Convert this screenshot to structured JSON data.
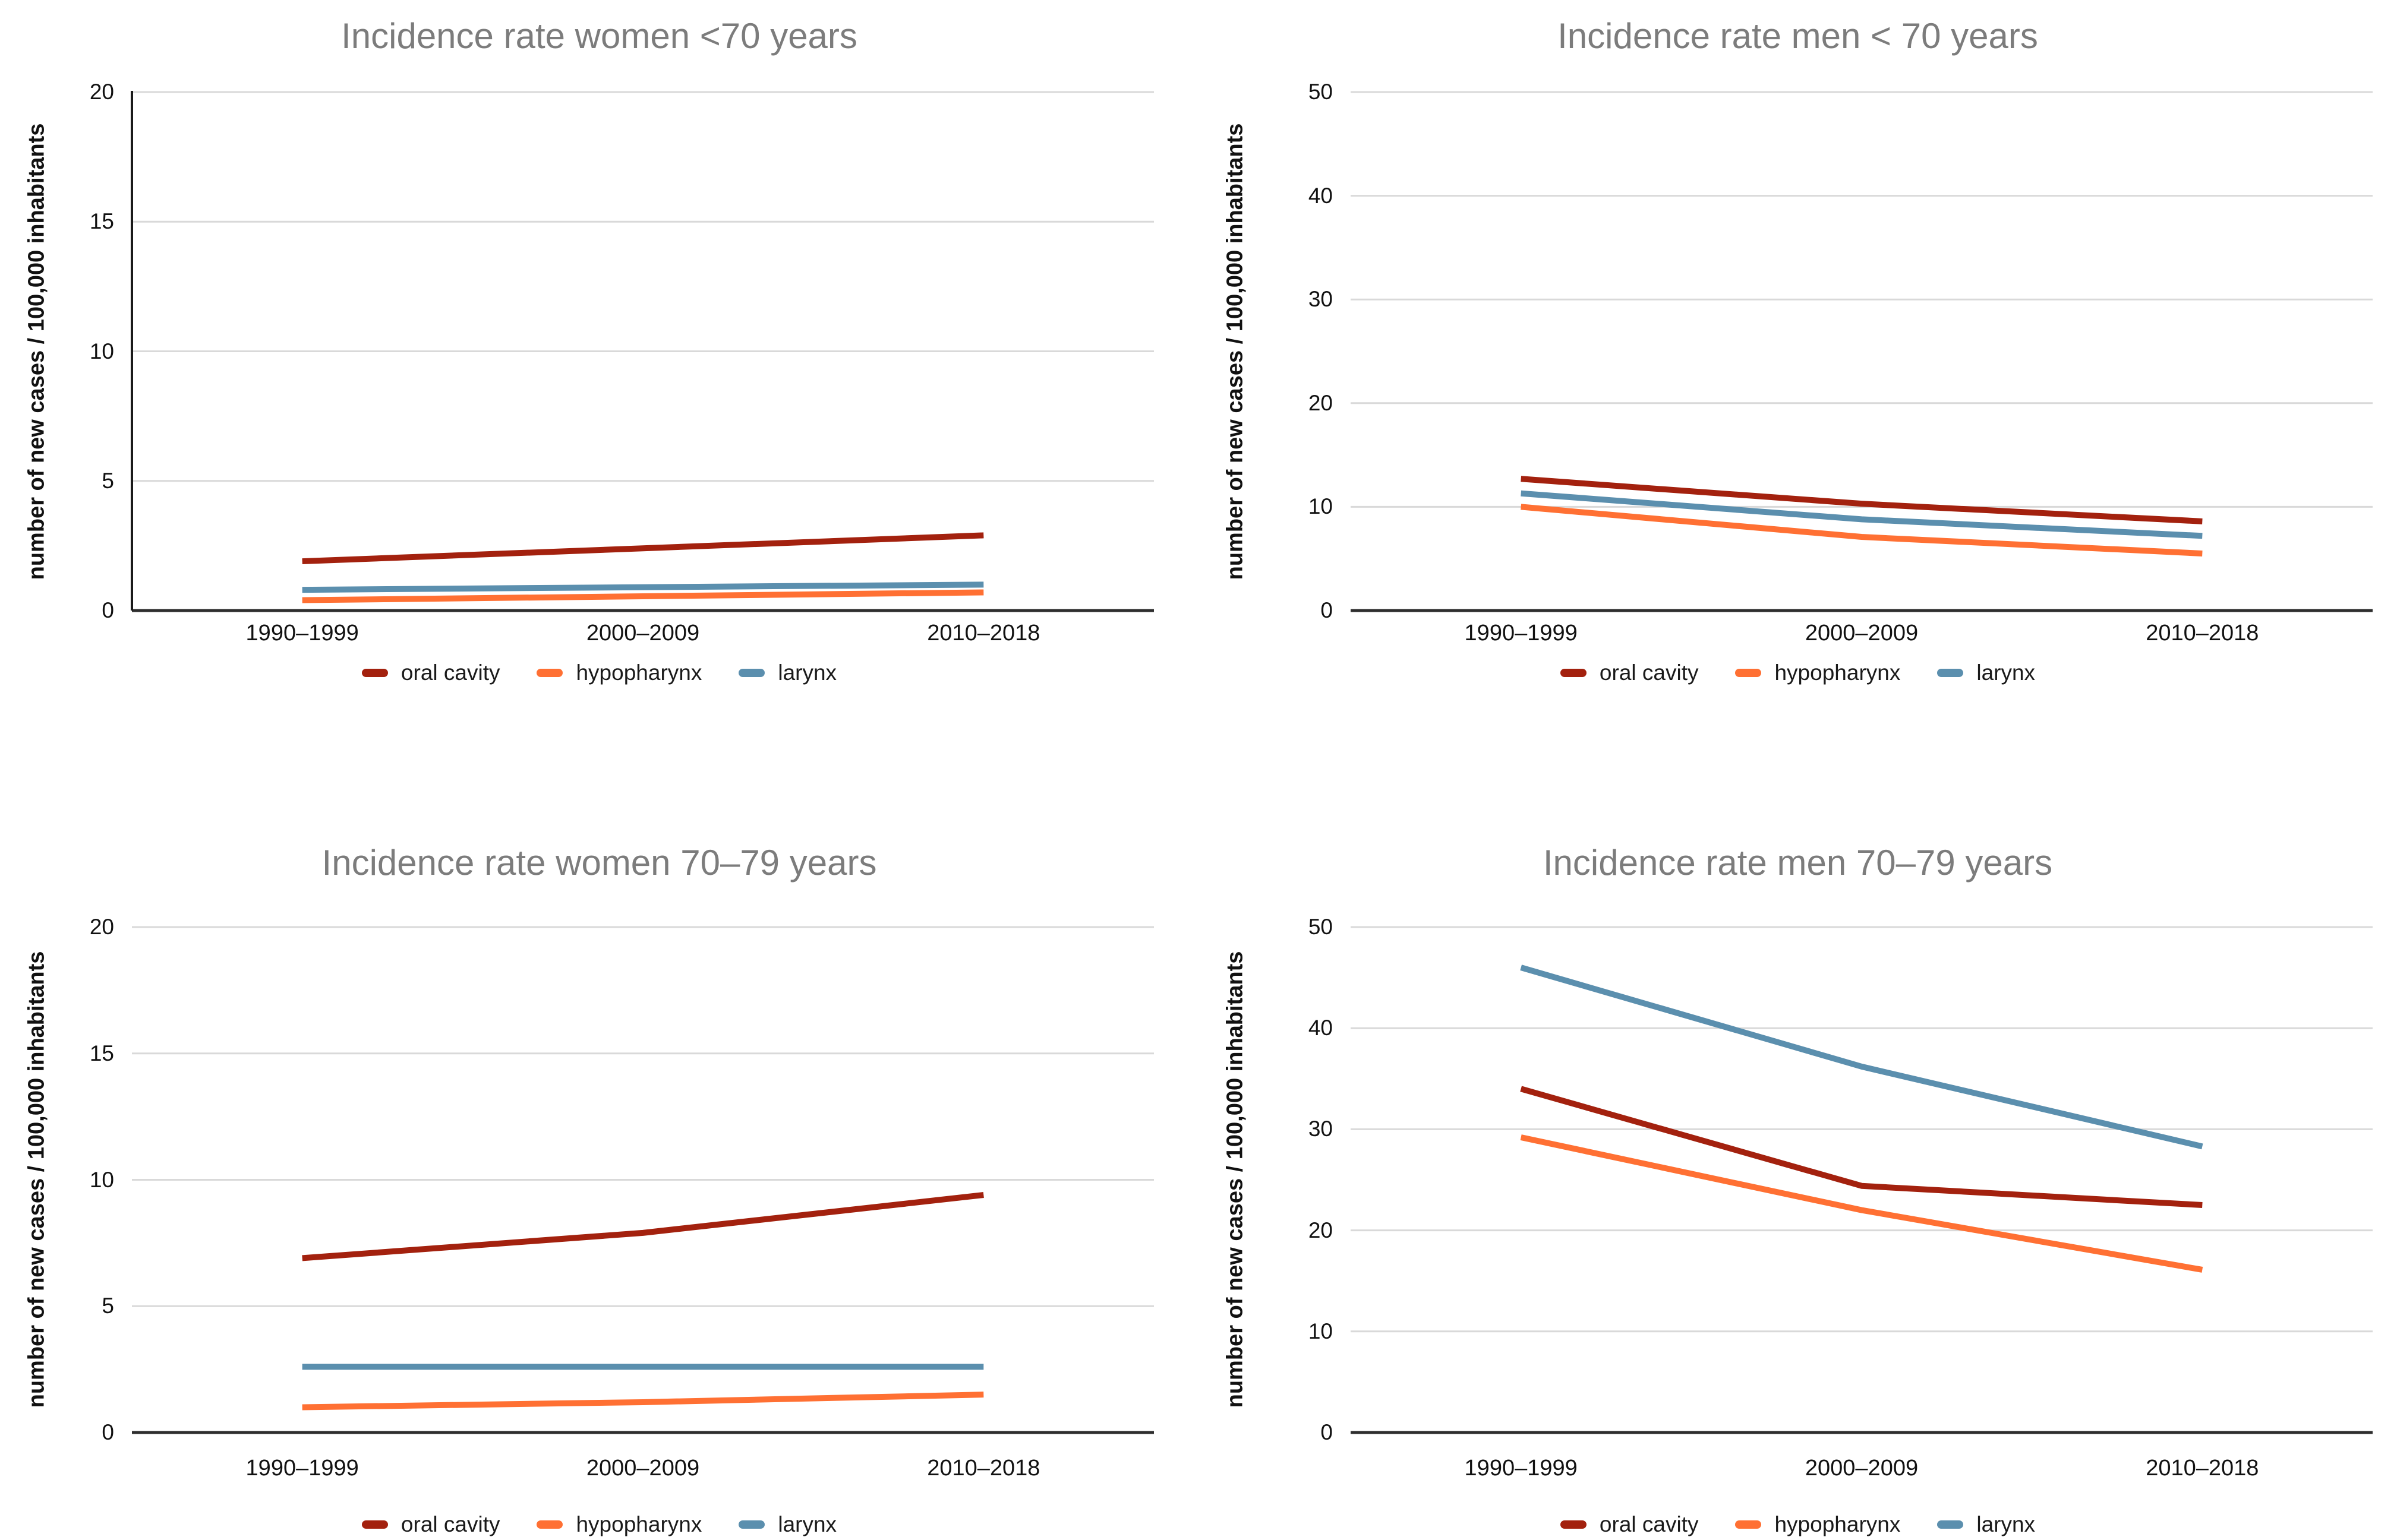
{
  "figure": {
    "ylabel": "number of new cases / 100,000 inhabitants",
    "categories": [
      "1990–1999",
      "2000–2009",
      "2010–2018"
    ],
    "legend_labels": [
      "oral cavity",
      "hypopharynx",
      "larynx"
    ],
    "colors": {
      "oral_cavity": "#a3210e",
      "hypopharynx": "#ff7033",
      "larynx": "#5b8fae",
      "title_text": "#7c7c7c",
      "grid_line": "#d9d9d9",
      "axis_line": "#2e2e2e",
      "tick_text": "#111111"
    }
  },
  "chart_data": [
    {
      "type": "line",
      "title": "Incidence rate women <70 years",
      "xlabel": "",
      "ylabel": "number of new cases / 100,000 inhabitants",
      "categories": [
        "1990–1999",
        "2000–2009",
        "2010–2018"
      ],
      "ylim": [
        0,
        20
      ],
      "yticks": [
        0,
        5,
        10,
        15,
        20
      ],
      "grid": true,
      "y_axis_line": true,
      "legend_position": "bottom",
      "series": [
        {
          "name": "oral cavity",
          "color": "#a3210e",
          "values": [
            1.9,
            2.4,
            2.9
          ]
        },
        {
          "name": "hypopharynx",
          "color": "#ff7033",
          "values": [
            0.4,
            0.55,
            0.7
          ]
        },
        {
          "name": "larynx",
          "color": "#5b8fae",
          "values": [
            0.8,
            0.9,
            1.0
          ]
        }
      ]
    },
    {
      "type": "line",
      "title": "Incidence rate men < 70 years",
      "xlabel": "",
      "ylabel": "number of new cases / 100,000 inhabitants",
      "categories": [
        "1990–1999",
        "2000–2009",
        "2010–2018"
      ],
      "ylim": [
        0,
        50
      ],
      "yticks": [
        0,
        10,
        20,
        30,
        40,
        50
      ],
      "grid": true,
      "y_axis_line": false,
      "legend_position": "bottom",
      "series": [
        {
          "name": "oral cavity",
          "color": "#a3210e",
          "values": [
            12.7,
            10.3,
            8.6
          ]
        },
        {
          "name": "hypopharynx",
          "color": "#ff7033",
          "values": [
            10.0,
            7.1,
            5.5
          ]
        },
        {
          "name": "larynx",
          "color": "#5b8fae",
          "values": [
            11.3,
            8.8,
            7.2
          ]
        }
      ]
    },
    {
      "type": "line",
      "title": "Incidence rate women 70–79 years",
      "xlabel": "",
      "ylabel": "number of new cases / 100,000 inhabitants",
      "categories": [
        "1990–1999",
        "2000–2009",
        "2010–2018"
      ],
      "ylim": [
        0,
        20
      ],
      "yticks": [
        0,
        5,
        10,
        15,
        20
      ],
      "grid": true,
      "y_axis_line": false,
      "legend_position": "bottom",
      "series": [
        {
          "name": "oral cavity",
          "color": "#a3210e",
          "values": [
            6.9,
            7.9,
            9.4
          ]
        },
        {
          "name": "hypopharynx",
          "color": "#ff7033",
          "values": [
            1.0,
            1.2,
            1.5
          ]
        },
        {
          "name": "larynx",
          "color": "#5b8fae",
          "values": [
            2.6,
            2.6,
            2.6
          ]
        }
      ]
    },
    {
      "type": "line",
      "title": "Incidence rate men 70–79 years",
      "xlabel": "",
      "ylabel": "number of new cases / 100,000 inhabitants",
      "categories": [
        "1990–1999",
        "2000–2009",
        "2010–2018"
      ],
      "ylim": [
        0,
        50
      ],
      "yticks": [
        0,
        10,
        20,
        30,
        40,
        50
      ],
      "grid": true,
      "y_axis_line": false,
      "legend_position": "bottom",
      "series": [
        {
          "name": "oral cavity",
          "color": "#a3210e",
          "values": [
            34.0,
            24.4,
            22.5
          ]
        },
        {
          "name": "hypopharynx",
          "color": "#ff7033",
          "values": [
            29.2,
            22.0,
            16.1
          ]
        },
        {
          "name": "larynx",
          "color": "#5b8fae",
          "values": [
            46.0,
            36.2,
            28.3
          ]
        }
      ]
    }
  ]
}
